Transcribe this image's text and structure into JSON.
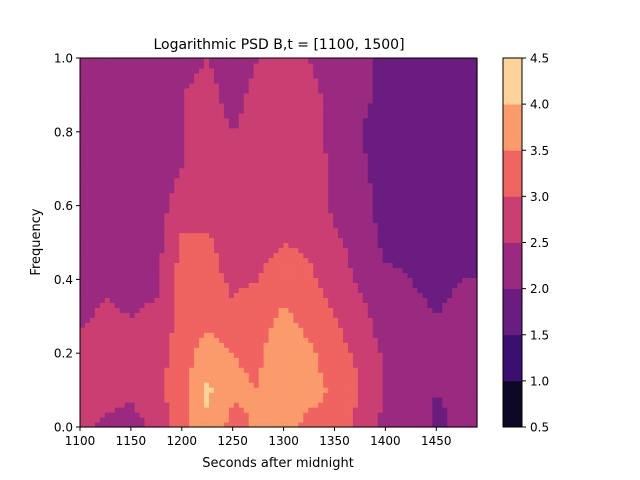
{
  "chart_data": {
    "type": "heatmap",
    "subtype": "filled-contour",
    "title": "Logarithmic PSD B,t = [1100, 1500]",
    "xlabel": "Seconds after midnight",
    "ylabel": "Frequency",
    "xlim": [
      1100,
      1490
    ],
    "ylim": [
      0.0,
      1.0
    ],
    "xticks": [
      1100,
      1150,
      1200,
      1250,
      1300,
      1350,
      1400,
      1450
    ],
    "yticks": [
      0.0,
      0.2,
      0.4,
      0.6,
      0.8,
      1.0
    ],
    "colormap": "magma",
    "colorbar": {
      "levels": [
        0.5,
        1.0,
        1.5,
        2.0,
        2.5,
        3.0,
        3.5,
        4.0,
        4.5
      ],
      "colors": [
        "#0c0826",
        "#3b0f70",
        "#6a1c81",
        "#9a2a80",
        "#cb3e72",
        "#ef6360",
        "#fb9b6c",
        "#fdd39a"
      ]
    },
    "x": [
      1100,
      1125,
      1150,
      1175,
      1200,
      1225,
      1250,
      1275,
      1300,
      1325,
      1350,
      1375,
      1400,
      1425,
      1450,
      1475,
      1490
    ],
    "y": [
      0.0,
      0.1,
      0.2,
      0.3,
      0.4,
      0.5,
      0.6,
      0.7,
      0.8,
      0.9,
      1.0
    ],
    "z": [
      [
        2.6,
        2.4,
        2.3,
        2.6,
        3.3,
        3.9,
        3.3,
        3.6,
        3.7,
        3.3,
        3.4,
        2.8,
        2.4,
        2.3,
        1.9,
        2.1,
        2.2
      ],
      [
        2.9,
        2.7,
        2.6,
        2.9,
        3.3,
        4.1,
        3.6,
        3.5,
        4.0,
        3.7,
        3.4,
        3.0,
        2.4,
        2.2,
        2.0,
        2.1,
        2.2
      ],
      [
        2.7,
        2.8,
        2.7,
        2.8,
        3.2,
        3.8,
        3.5,
        3.4,
        3.9,
        3.6,
        3.2,
        2.9,
        2.4,
        2.3,
        2.1,
        2.2,
        2.2
      ],
      [
        2.4,
        2.6,
        2.5,
        2.6,
        3.2,
        3.3,
        3.1,
        3.3,
        3.6,
        3.3,
        3.0,
        2.7,
        2.2,
        2.1,
        2.0,
        2.1,
        2.1
      ],
      [
        2.3,
        2.4,
        2.3,
        2.4,
        3.2,
        3.2,
        2.9,
        3.0,
        3.3,
        3.1,
        2.8,
        2.4,
        2.1,
        2.0,
        1.9,
        2.0,
        2.0
      ],
      [
        2.2,
        2.3,
        2.2,
        2.3,
        3.1,
        3.1,
        2.7,
        2.8,
        3.0,
        2.9,
        2.6,
        2.3,
        1.9,
        1.9,
        1.8,
        1.9,
        1.9
      ],
      [
        2.3,
        2.2,
        2.2,
        2.3,
        2.7,
        2.8,
        2.6,
        2.8,
        2.9,
        2.8,
        2.4,
        2.2,
        1.8,
        1.7,
        1.7,
        1.8,
        2.0
      ],
      [
        2.3,
        2.2,
        2.1,
        2.3,
        2.5,
        2.9,
        2.5,
        2.7,
        3.0,
        2.8,
        2.4,
        2.1,
        1.8,
        1.7,
        1.7,
        1.8,
        1.9
      ],
      [
        2.2,
        2.2,
        2.1,
        2.2,
        2.5,
        2.6,
        2.5,
        2.6,
        3.0,
        2.7,
        2.3,
        2.0,
        1.8,
        1.8,
        1.7,
        1.8,
        1.9
      ],
      [
        2.3,
        2.2,
        2.2,
        2.3,
        2.5,
        2.6,
        2.4,
        2.6,
        2.8,
        2.6,
        2.4,
        2.1,
        1.9,
        1.8,
        1.8,
        1.8,
        1.9
      ],
      [
        2.3,
        2.4,
        2.2,
        2.3,
        2.4,
        2.5,
        2.3,
        2.5,
        2.7,
        2.5,
        2.3,
        2.1,
        1.9,
        1.8,
        1.8,
        1.8,
        1.8
      ]
    ]
  }
}
